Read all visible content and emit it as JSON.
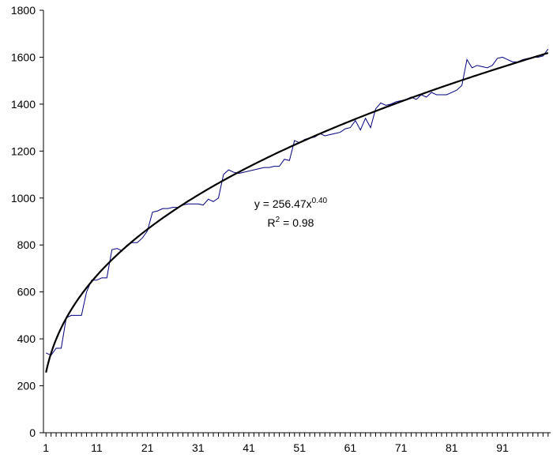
{
  "chart_data": {
    "type": "line",
    "x": [
      1,
      2,
      3,
      4,
      5,
      6,
      7,
      8,
      9,
      10,
      11,
      12,
      13,
      14,
      15,
      16,
      17,
      18,
      19,
      20,
      21,
      22,
      23,
      24,
      25,
      26,
      27,
      28,
      29,
      30,
      31,
      32,
      33,
      34,
      35,
      36,
      37,
      38,
      39,
      40,
      41,
      42,
      43,
      44,
      45,
      46,
      47,
      48,
      49,
      50,
      51,
      52,
      53,
      54,
      55,
      56,
      57,
      58,
      59,
      60,
      61,
      62,
      63,
      64,
      65,
      66,
      67,
      68,
      69,
      70,
      71,
      72,
      73,
      74,
      75,
      76,
      77,
      78,
      79,
      80,
      81,
      82,
      83,
      84,
      85,
      86,
      87,
      88,
      89,
      90,
      91,
      92,
      93,
      94,
      95,
      96,
      97,
      98,
      99,
      100
    ],
    "xlim": [
      0.5,
      100.5
    ],
    "xticks": [
      1,
      11,
      21,
      31,
      41,
      51,
      61,
      71,
      81,
      91
    ],
    "ylim": [
      0,
      1800
    ],
    "yticks": [
      0,
      200,
      400,
      600,
      800,
      1000,
      1200,
      1400,
      1600,
      1800
    ],
    "series": [
      {
        "color": "#000080",
        "values": [
          340,
          330,
          360,
          360,
          490,
          500,
          500,
          500,
          600,
          650,
          650,
          660,
          660,
          780,
          785,
          775,
          800,
          810,
          810,
          830,
          860,
          940,
          945,
          955,
          955,
          960,
          960,
          970,
          975,
          975,
          975,
          970,
          995,
          985,
          1000,
          1100,
          1120,
          1110,
          1105,
          1110,
          1115,
          1120,
          1125,
          1130,
          1130,
          1135,
          1135,
          1165,
          1160,
          1245,
          1235,
          1250,
          1255,
          1260,
          1275,
          1265,
          1270,
          1275,
          1280,
          1295,
          1300,
          1330,
          1290,
          1340,
          1300,
          1380,
          1405,
          1395,
          1400,
          1410,
          1415,
          1420,
          1430,
          1420,
          1440,
          1430,
          1450,
          1440,
          1440,
          1440,
          1450,
          1460,
          1480,
          1590,
          1555,
          1565,
          1560,
          1555,
          1565,
          1595,
          1600,
          1590,
          1580,
          1580,
          1590,
          1595,
          1600,
          1600,
          1605,
          1635
        ]
      }
    ],
    "trendline": {
      "type": "power",
      "color": "#000000",
      "coefficient": 256.47,
      "exponent": 0.4,
      "equation_base": "y = 256.47x",
      "equation_exponent": "0.40",
      "r2_base": "R",
      "r2_exponent": "2",
      "r2_rest": " = 0.98"
    }
  }
}
